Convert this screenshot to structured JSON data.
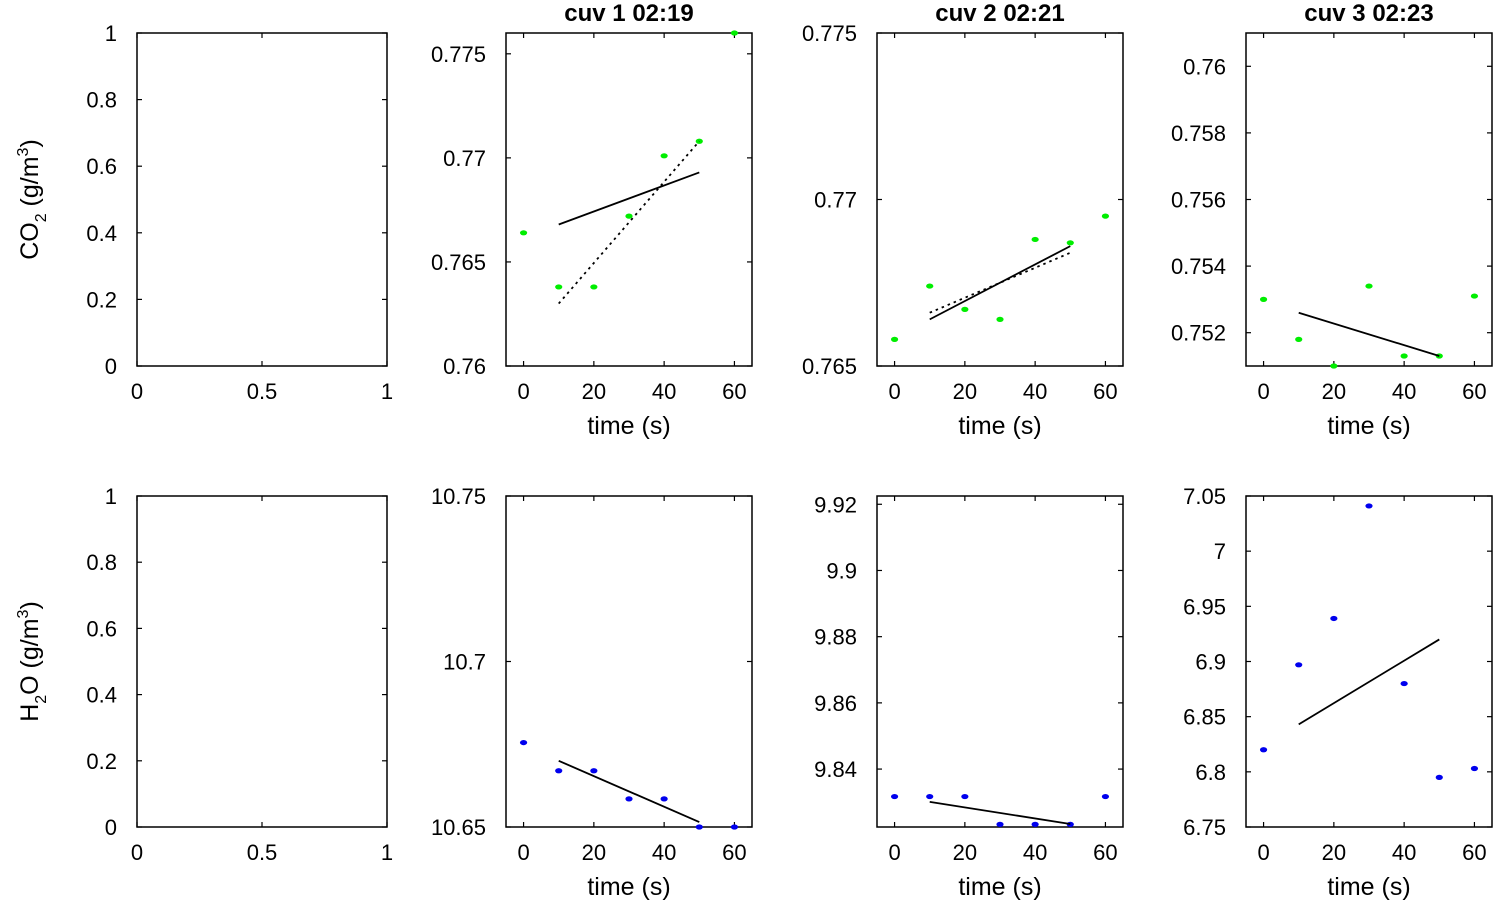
{
  "chart_data": [
    {
      "type": "scatter",
      "title": "",
      "xlabel": "",
      "ylabel": {
        "a": "CO",
        "sub": "2",
        "b": " (g/m",
        "sup": "3",
        "c": ")"
      },
      "xlim": [
        0,
        1
      ],
      "ylim": [
        0,
        1
      ],
      "xticks": [
        0,
        0.5,
        1
      ],
      "xtick_labels": [
        "0",
        "0.5",
        "1"
      ],
      "yticks": [
        0,
        0.2,
        0.4,
        0.6,
        0.8,
        1
      ],
      "ytick_labels": [
        "0",
        "0.2",
        "0.4",
        "0.6",
        "0.8",
        "1"
      ],
      "series": []
    },
    {
      "type": "scatter",
      "title": "cuv 1 02:19",
      "xlabel": "time (s)",
      "ylabel": null,
      "xlim": [
        -5,
        65
      ],
      "ylim": [
        0.76,
        0.776
      ],
      "xticks": [
        0,
        20,
        40,
        60
      ],
      "xtick_labels": [
        "0",
        "20",
        "40",
        "60"
      ],
      "yticks": [
        0.76,
        0.765,
        0.77,
        0.775
      ],
      "ytick_labels": [
        "0.76",
        "0.765",
        "0.77",
        "0.775"
      ],
      "series": [
        {
          "kind": "points",
          "color": "#00ee00",
          "x": [
            0,
            10,
            20,
            30,
            40,
            50,
            60
          ],
          "y": [
            0.7664,
            0.7638,
            0.7638,
            0.7672,
            0.7701,
            0.7708,
            0.776
          ]
        },
        {
          "kind": "line",
          "style": "solid",
          "color": "#000000",
          "x": [
            10,
            50
          ],
          "y": [
            0.7668,
            0.7693
          ]
        },
        {
          "kind": "line",
          "style": "dotted",
          "color": "#000000",
          "x": [
            10,
            50
          ],
          "y": [
            0.763,
            0.7708
          ]
        }
      ]
    },
    {
      "type": "scatter",
      "title": "cuv 2 02:21",
      "xlabel": "time (s)",
      "ylabel": null,
      "xlim": [
        -5,
        65
      ],
      "ylim": [
        0.765,
        0.775
      ],
      "xticks": [
        0,
        20,
        40,
        60
      ],
      "xtick_labels": [
        "0",
        "20",
        "40",
        "60"
      ],
      "yticks": [
        0.765,
        0.77,
        0.775
      ],
      "ytick_labels": [
        "0.765",
        "0.77",
        "0.775"
      ],
      "series": [
        {
          "kind": "points",
          "color": "#00ee00",
          "x": [
            0,
            10,
            20,
            30,
            40,
            50,
            60
          ],
          "y": [
            0.7658,
            0.7674,
            0.7667,
            0.7664,
            0.7688,
            0.7687,
            0.7695
          ]
        },
        {
          "kind": "line",
          "style": "solid",
          "color": "#000000",
          "x": [
            10,
            50
          ],
          "y": [
            0.7664,
            0.7686
          ]
        },
        {
          "kind": "line",
          "style": "dotted",
          "color": "#000000",
          "x": [
            10,
            50
          ],
          "y": [
            0.7666,
            0.7684
          ]
        }
      ]
    },
    {
      "type": "scatter",
      "title": "cuv 3 02:23",
      "xlabel": "time (s)",
      "ylabel": null,
      "xlim": [
        -5,
        65
      ],
      "ylim": [
        0.751,
        0.761
      ],
      "xticks": [
        0,
        20,
        40,
        60
      ],
      "xtick_labels": [
        "0",
        "20",
        "40",
        "60"
      ],
      "yticks": [
        0.752,
        0.754,
        0.756,
        0.758,
        0.76
      ],
      "ytick_labels": [
        "0.752",
        "0.754",
        "0.756",
        "0.758",
        "0.76"
      ],
      "series": [
        {
          "kind": "points",
          "color": "#00ee00",
          "x": [
            0,
            10,
            20,
            30,
            40,
            50,
            60
          ],
          "y": [
            0.753,
            0.7518,
            0.751,
            0.7534,
            0.7513,
            0.7513,
            0.7531
          ]
        },
        {
          "kind": "line",
          "style": "solid",
          "color": "#000000",
          "x": [
            10,
            50
          ],
          "y": [
            0.7526,
            0.7513
          ]
        }
      ]
    },
    {
      "type": "scatter",
      "title": "",
      "xlabel": "",
      "ylabel": {
        "a": "H",
        "sub": "2",
        "b": "O (g/m",
        "sup": "3",
        "c": ")"
      },
      "xlim": [
        0,
        1
      ],
      "ylim": [
        0,
        1
      ],
      "xticks": [
        0,
        0.5,
        1
      ],
      "xtick_labels": [
        "0",
        "0.5",
        "1"
      ],
      "yticks": [
        0,
        0.2,
        0.4,
        0.6,
        0.8,
        1
      ],
      "ytick_labels": [
        "0",
        "0.2",
        "0.4",
        "0.6",
        "0.8",
        "1"
      ],
      "series": []
    },
    {
      "type": "scatter",
      "title": "",
      "xlabel": "time (s)",
      "ylabel": null,
      "xlim": [
        -5,
        65
      ],
      "ylim": [
        10.65,
        10.75
      ],
      "xticks": [
        0,
        20,
        40,
        60
      ],
      "xtick_labels": [
        "0",
        "20",
        "40",
        "60"
      ],
      "yticks": [
        10.65,
        10.7,
        10.75
      ],
      "ytick_labels": [
        "10.65",
        "10.7",
        "10.75"
      ],
      "series": [
        {
          "kind": "points",
          "color": "#0000ee",
          "x": [
            0,
            10,
            20,
            30,
            40,
            50,
            60
          ],
          "y": [
            10.6755,
            10.667,
            10.667,
            10.6585,
            10.6585,
            10.65,
            10.65
          ]
        },
        {
          "kind": "line",
          "style": "solid",
          "color": "#000000",
          "x": [
            10,
            50
          ],
          "y": [
            10.67,
            10.6515
          ]
        }
      ]
    },
    {
      "type": "scatter",
      "title": "",
      "xlabel": "time (s)",
      "ylabel": null,
      "xlim": [
        -5,
        65
      ],
      "ylim": [
        9.8225,
        9.9225
      ],
      "xticks": [
        0,
        20,
        40,
        60
      ],
      "xtick_labels": [
        "0",
        "20",
        "40",
        "60"
      ],
      "yticks": [
        9.84,
        9.86,
        9.88,
        9.9,
        9.92
      ],
      "ytick_labels": [
        "9.84",
        "9.86",
        "9.88",
        "9.9",
        "9.92"
      ],
      "series": [
        {
          "kind": "points",
          "color": "#0000ee",
          "x": [
            0,
            10,
            20,
            30,
            40,
            50,
            60
          ],
          "y": [
            9.8317,
            9.8317,
            9.8317,
            9.8233,
            9.8233,
            9.8233,
            9.8317
          ]
        },
        {
          "kind": "line",
          "style": "solid",
          "color": "#000000",
          "x": [
            10,
            50
          ],
          "y": [
            9.8301,
            9.8234
          ]
        }
      ]
    },
    {
      "type": "scatter",
      "title": "",
      "xlabel": "time (s)",
      "ylabel": null,
      "xlim": [
        -5,
        65
      ],
      "ylim": [
        6.75,
        7.05
      ],
      "xticks": [
        0,
        20,
        40,
        60
      ],
      "xtick_labels": [
        "0",
        "20",
        "40",
        "60"
      ],
      "yticks": [
        6.75,
        6.8,
        6.85,
        6.9,
        6.95,
        7,
        7.05
      ],
      "ytick_labels": [
        "6.75",
        "6.8",
        "6.85",
        "6.9",
        "6.95",
        "7",
        "7.05"
      ],
      "series": [
        {
          "kind": "points",
          "color": "#0000ee",
          "x": [
            0,
            10,
            20,
            30,
            40,
            50,
            60
          ],
          "y": [
            6.82,
            6.897,
            6.939,
            7.041,
            6.88,
            6.795,
            6.803
          ]
        },
        {
          "kind": "line",
          "style": "solid",
          "color": "#000000",
          "x": [
            10,
            50
          ],
          "y": [
            6.843,
            6.92
          ]
        }
      ]
    }
  ]
}
